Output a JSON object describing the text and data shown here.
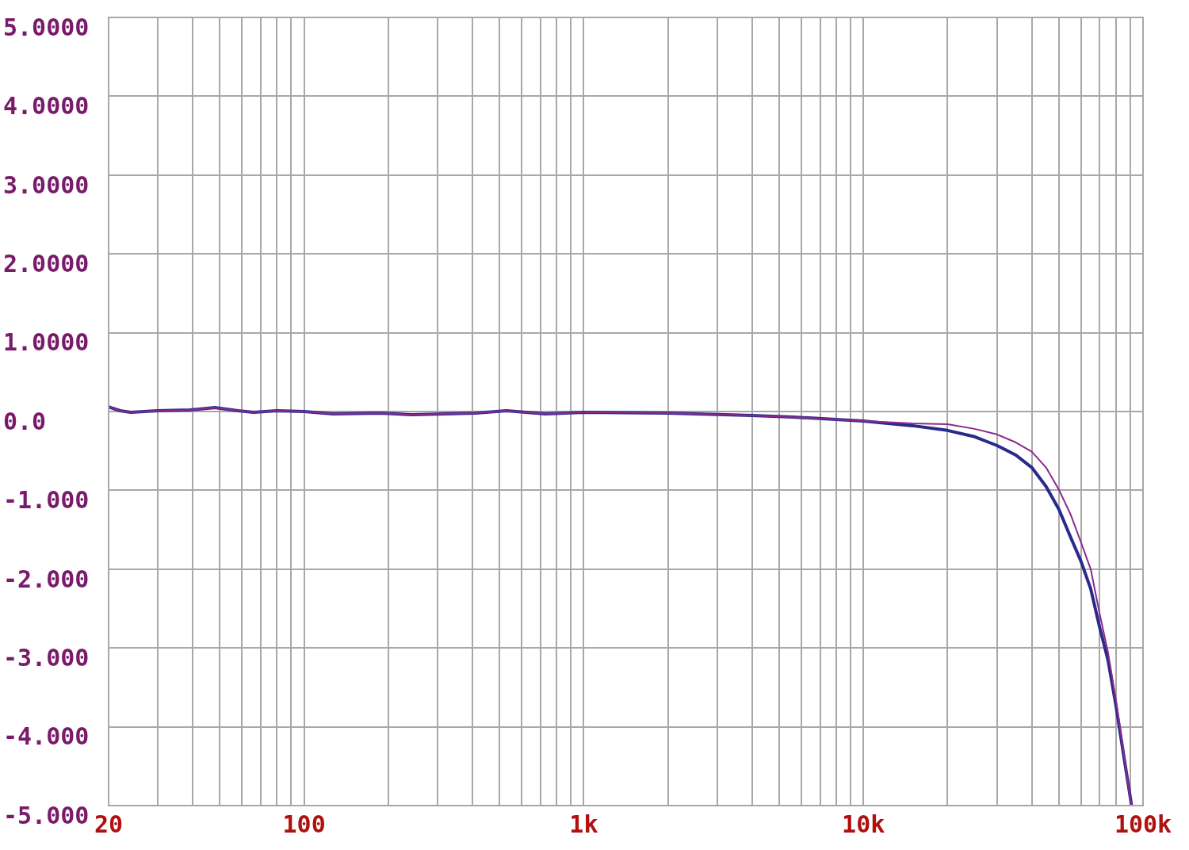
{
  "chart_data": {
    "type": "line",
    "log": "x",
    "grid": true,
    "marker": "none",
    "xlim": [
      20,
      100000
    ],
    "xticks": [
      20,
      {
        "value": 30,
        "label": null
      },
      {
        "value": 40,
        "label": null
      },
      {
        "value": 50,
        "label": null
      },
      {
        "value": 60,
        "label": null
      },
      {
        "value": 70,
        "label": null
      },
      {
        "value": 80,
        "label": null
      },
      {
        "value": 90,
        "label": null
      },
      100,
      {
        "value": 200,
        "label": null
      },
      {
        "value": 300,
        "label": null
      },
      {
        "value": 400,
        "label": null
      },
      {
        "value": 500,
        "label": null
      },
      {
        "value": 600,
        "label": null
      },
      {
        "value": 700,
        "label": null
      },
      {
        "value": 800,
        "label": null
      },
      {
        "value": 900,
        "label": null
      },
      {
        "value": 1000,
        "label": "1k"
      },
      {
        "value": 2000,
        "label": null
      },
      {
        "value": 3000,
        "label": null
      },
      {
        "value": 4000,
        "label": null
      },
      {
        "value": 5000,
        "label": null
      },
      {
        "value": 6000,
        "label": null
      },
      {
        "value": 7000,
        "label": null
      },
      {
        "value": 8000,
        "label": null
      },
      {
        "value": 9000,
        "label": null
      },
      {
        "value": 10000,
        "label": "10k"
      },
      {
        "value": 20000,
        "label": null
      },
      {
        "value": 30000,
        "label": null
      },
      {
        "value": 40000,
        "label": null
      },
      {
        "value": 50000,
        "label": null
      },
      {
        "value": 60000,
        "label": null
      },
      {
        "value": 70000,
        "label": null
      },
      {
        "value": 80000,
        "label": null
      },
      {
        "value": 90000,
        "label": null
      },
      {
        "value": 100000,
        "label": "100k"
      }
    ],
    "ylim": [
      -5,
      5
    ],
    "yticks": [
      {
        "value": 5,
        "label": "5.0000"
      },
      {
        "value": 4,
        "label": "4.0000"
      },
      {
        "value": 3,
        "label": "3.0000"
      },
      {
        "value": 2,
        "label": "2.0000"
      },
      {
        "value": 1,
        "label": "1.0000"
      },
      {
        "value": 0,
        "label": "0.0"
      },
      {
        "value": -1,
        "label": "-1.000"
      },
      {
        "value": -2,
        "label": "-2.000"
      },
      {
        "value": -3,
        "label": "-3.000"
      },
      {
        "value": -4,
        "label": "-4.000"
      },
      {
        "value": -5,
        "label": "-5.000"
      }
    ],
    "series": [
      {
        "color": "#8b2a8b",
        "x": [
          20,
          22,
          24,
          30,
          39,
          48,
          58,
          66,
          80,
          100,
          127,
          187,
          244,
          410,
          530,
          730,
          1000,
          2000,
          4000,
          5600,
          10000,
          15000,
          20000,
          25000,
          30000,
          35000,
          40000,
          45000,
          50000,
          55000,
          60000,
          65000,
          70000,
          75000,
          80000,
          85000,
          90000,
          91000
        ],
        "values": [
          0.06,
          0.01,
          -0.01,
          0.01,
          0.02,
          0.05,
          0.01,
          -0.01,
          0.01,
          0,
          -0.03,
          -0.02,
          -0.04,
          -0.02,
          0.01,
          -0.03,
          -0.01,
          -0.02,
          -0.05,
          -0.07,
          -0.12,
          -0.15,
          -0.16,
          -0.22,
          -0.29,
          -0.39,
          -0.51,
          -0.71,
          -0.99,
          -1.3,
          -1.66,
          -2.0,
          -2.57,
          -3.06,
          -3.66,
          -4.29,
          -4.92,
          -5
        ]
      },
      {
        "color": "#2a2a8a",
        "x": [
          20,
          22,
          24,
          30,
          39,
          48,
          58,
          66,
          80,
          100,
          127,
          187,
          244,
          410,
          530,
          730,
          1000,
          2000,
          4000,
          5600,
          10000,
          15000,
          20000,
          25000,
          30000,
          35000,
          40000,
          45000,
          50000,
          55000,
          60000,
          65000,
          70000,
          75000,
          80000,
          85000,
          91000
        ],
        "values": [
          0.06,
          0.01,
          -0.01,
          0.01,
          0.02,
          0.05,
          0.01,
          -0.01,
          0.01,
          0,
          -0.03,
          -0.02,
          -0.04,
          -0.02,
          0.01,
          -0.03,
          -0.01,
          -0.02,
          -0.05,
          -0.07,
          -0.12,
          -0.18,
          -0.24,
          -0.32,
          -0.43,
          -0.55,
          -0.71,
          -0.95,
          -1.24,
          -1.59,
          -1.9,
          -2.25,
          -2.74,
          -3.16,
          -3.73,
          -4.33,
          -5
        ]
      }
    ]
  }
}
